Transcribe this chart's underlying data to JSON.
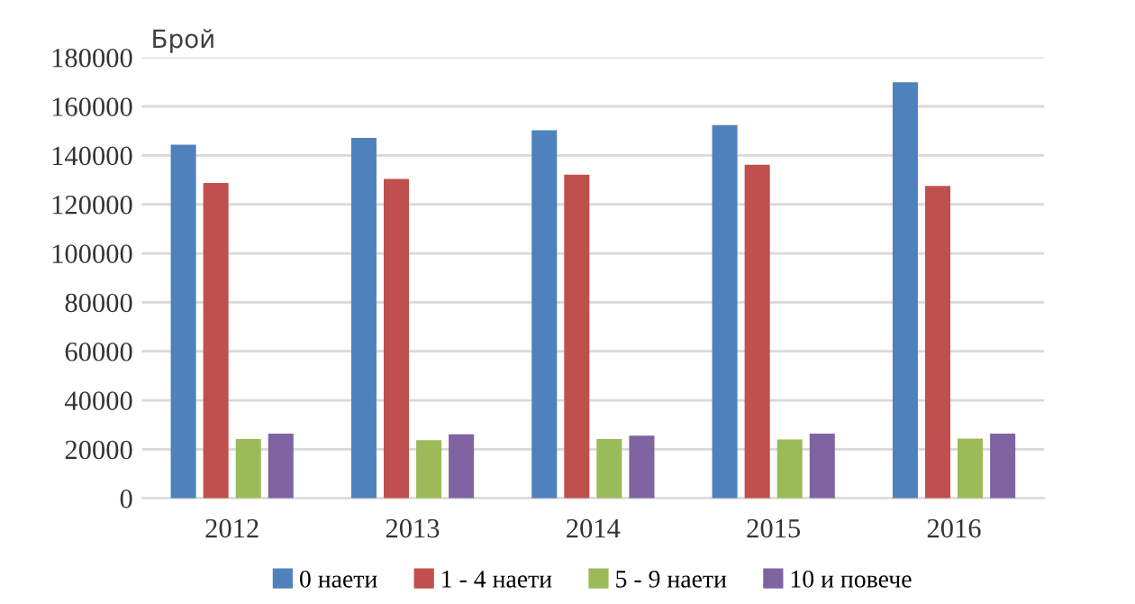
{
  "chart_data": {
    "type": "bar",
    "ylabel": "Брой",
    "categories": [
      "2012",
      "2013",
      "2014",
      "2015",
      "2016"
    ],
    "series": [
      {
        "name": "0 наети",
        "color": "#4f81bd",
        "values": [
          144400,
          147100,
          150200,
          152400,
          169800
        ]
      },
      {
        "name": "1 - 4 наети",
        "color": "#c0504d",
        "values": [
          128700,
          130400,
          132100,
          136200,
          127500
        ]
      },
      {
        "name": "5 - 9 наети",
        "color": "#9bbb59",
        "values": [
          24200,
          23700,
          24200,
          24000,
          24400
        ]
      },
      {
        "name": "10 и повече",
        "color": "#8064a2",
        "values": [
          26400,
          26100,
          25600,
          26400,
          26400
        ]
      }
    ],
    "ylim": [
      0,
      180000
    ],
    "yticks": [
      0,
      20000,
      40000,
      60000,
      80000,
      100000,
      120000,
      140000,
      160000,
      180000
    ],
    "grid": "y",
    "legend": "bottom"
  }
}
